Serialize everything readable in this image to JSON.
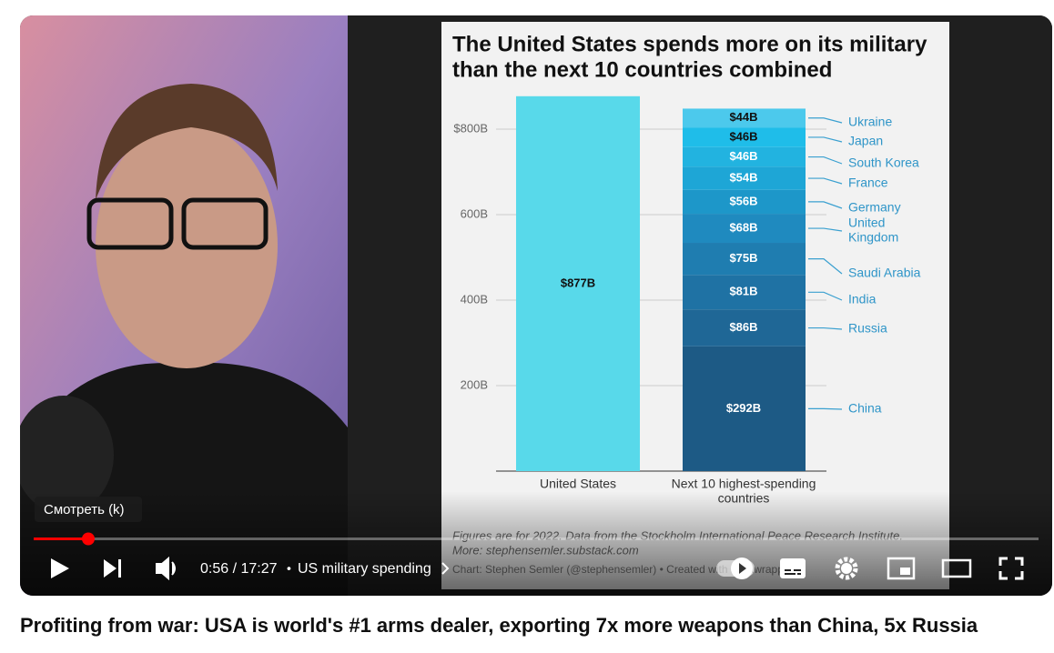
{
  "video": {
    "chart": {
      "title_lines": [
        "The United States spends more on its military",
        "than the next 10 countries combined"
      ],
      "ylim": [
        0,
        900
      ],
      "yticks": [
        {
          "value": 200,
          "label": "200B"
        },
        {
          "value": 400,
          "label": "400B"
        },
        {
          "value": 600,
          "label": "600B"
        },
        {
          "value": 800,
          "label": "$800B"
        }
      ],
      "us": {
        "category": "United States",
        "value": 877,
        "value_label": "$877B",
        "color": "#58d9ea"
      },
      "stack": {
        "category_lines": [
          "Next 10 highest-spending",
          "countries"
        ],
        "segments": [
          {
            "name_lines": [
              "China"
            ],
            "value": 292,
            "value_label": "$292B",
            "color": "#1d5a85"
          },
          {
            "name_lines": [
              "Russia"
            ],
            "value": 86,
            "value_label": "$86B",
            "color": "#1f6796"
          },
          {
            "name_lines": [
              "India"
            ],
            "value": 81,
            "value_label": "$81B",
            "color": "#1f72a4"
          },
          {
            "name_lines": [
              "Saudi Arabia"
            ],
            "value": 75,
            "value_label": "$75B",
            "color": "#1f7db0"
          },
          {
            "name_lines": [
              "United",
              "Kingdom"
            ],
            "value": 68,
            "value_label": "$68B",
            "color": "#1f8abf"
          },
          {
            "name_lines": [
              "Germany"
            ],
            "value": 56,
            "value_label": "$56B",
            "color": "#1d97c9"
          },
          {
            "name_lines": [
              "France"
            ],
            "value": 54,
            "value_label": "$54B",
            "color": "#1ea6d6"
          },
          {
            "name_lines": [
              "South Korea"
            ],
            "value": 46,
            "value_label": "$46B",
            "color": "#22b3e0"
          },
          {
            "name_lines": [
              "Japan"
            ],
            "value": 46,
            "value_label": "$46B",
            "color": "#1fbde9"
          },
          {
            "name_lines": [
              "Ukraine"
            ],
            "value": 44,
            "value_label": "$44B",
            "color": "#4cc9ec"
          }
        ]
      },
      "footnote_lines": [
        "Figures are for 2022. Data from the Stockholm International Peace Research Institute.",
        "More: stephensemler.substack.com"
      ],
      "credit": "Chart: Stephen Semler (@stephensemler) • Created with Datawrapper"
    },
    "tooltip": "Смотреть (k)",
    "time": "0:56 / 17:27",
    "separator": "•",
    "chapter": "US military spending"
  },
  "title": "Profiting from war: USA is world's #1 arms dealer, exporting 7x more weapons than China, 5x Russia"
}
